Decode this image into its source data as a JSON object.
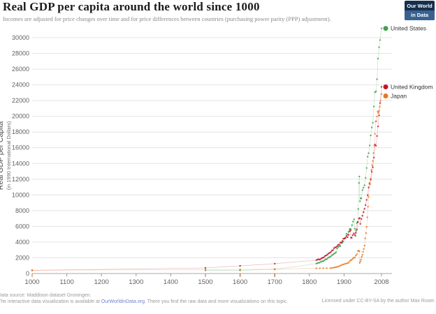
{
  "header": {
    "title": "Real GDP per capita around the world since 1000",
    "subtitle": "Incomes are adjusted for price changes over time and for price differences between countries (purchasing power parity (PPP) adjustment).",
    "logo": {
      "line1": "Our World",
      "line2": "in Data"
    }
  },
  "footer": {
    "line1": "Data source: Maddison dataset Groningen.",
    "line2_pre": "The interactive data visualization is available at ",
    "line2_link": "OurWorldinData.org",
    "line2_post": ". There you find the raw data and more visualizations on this topic.",
    "license": "Licensed under CC-BY-SA by the author Max Roser."
  },
  "colors": {
    "united_states": "#3ea34b",
    "united_kingdom": "#c2152c",
    "japan": "#e8771e",
    "gridline": "#e4e4e4",
    "axis": "#aaaaaa",
    "tick_text": "#616161"
  },
  "chart_data": {
    "type": "scatter",
    "title": "Real GDP per capita around the world since 1000",
    "xlabel": "",
    "ylabel": "Real GDP per Capita",
    "ylabel_sub": "(in 1990 International Dollars)",
    "xlim": [
      1000,
      2008
    ],
    "ylim": [
      0,
      31200
    ],
    "xticks": [
      1000,
      1100,
      1200,
      1300,
      1400,
      1500,
      1600,
      1700,
      1800,
      1900,
      2008
    ],
    "yticks": [
      0,
      2000,
      4000,
      6000,
      8000,
      10000,
      12000,
      14000,
      16000,
      18000,
      20000,
      22000,
      24000,
      26000,
      28000,
      30000
    ],
    "grid": true,
    "legend_position": "line-end-right",
    "series": [
      {
        "name": "United States",
        "color": "#3ea34b",
        "points": [
          [
            1500,
            400
          ],
          [
            1600,
            400
          ],
          [
            1700,
            527
          ],
          [
            1820,
            1257
          ],
          [
            1823,
            1307
          ],
          [
            1826,
            1354
          ],
          [
            1829,
            1386
          ],
          [
            1832,
            1475
          ],
          [
            1835,
            1548
          ],
          [
            1838,
            1563
          ],
          [
            1841,
            1594
          ],
          [
            1844,
            1703
          ],
          [
            1847,
            1820
          ],
          [
            1850,
            1806
          ],
          [
            1853,
            1966
          ],
          [
            1856,
            2060
          ],
          [
            1859,
            2106
          ],
          [
            1862,
            2196
          ],
          [
            1865,
            2332
          ],
          [
            1868,
            2408
          ],
          [
            1871,
            2523
          ],
          [
            1874,
            2593
          ],
          [
            1877,
            2715
          ],
          [
            1880,
            3184
          ],
          [
            1883,
            3373
          ],
          [
            1886,
            3472
          ],
          [
            1889,
            3497
          ],
          [
            1892,
            3902
          ],
          [
            1895,
            3902
          ],
          [
            1898,
            4091
          ],
          [
            1901,
            4464
          ],
          [
            1904,
            4559
          ],
          [
            1907,
            5065
          ],
          [
            1910,
            4964
          ],
          [
            1913,
            5301
          ],
          [
            1916,
            5659
          ],
          [
            1918,
            5659
          ],
          [
            1920,
            5552
          ],
          [
            1923,
            6164
          ],
          [
            1926,
            6602
          ],
          [
            1929,
            6899
          ],
          [
            1931,
            5691
          ],
          [
            1933,
            4777
          ],
          [
            1935,
            5467
          ],
          [
            1937,
            6430
          ],
          [
            1939,
            6561
          ],
          [
            1941,
            8206
          ],
          [
            1943,
            11518
          ],
          [
            1944,
            12333
          ],
          [
            1946,
            9197
          ],
          [
            1948,
            9573
          ],
          [
            1950,
            9561
          ],
          [
            1953,
            10613
          ],
          [
            1956,
            10914
          ],
          [
            1959,
            11230
          ],
          [
            1962,
            12175
          ],
          [
            1965,
            13419
          ],
          [
            1968,
            14863
          ],
          [
            1971,
            15304
          ],
          [
            1974,
            16284
          ],
          [
            1977,
            17567
          ],
          [
            1980,
            18577
          ],
          [
            1983,
            19183
          ],
          [
            1986,
            21236
          ],
          [
            1989,
            23059
          ],
          [
            1992,
            23169
          ],
          [
            1995,
            24712
          ],
          [
            1998,
            27331
          ],
          [
            2001,
            28782
          ],
          [
            2004,
            29694
          ],
          [
            2008,
            31178
          ]
        ]
      },
      {
        "name": "United Kingdom",
        "color": "#c2152c",
        "points": [
          [
            1000,
            400
          ],
          [
            1500,
            714
          ],
          [
            1600,
            974
          ],
          [
            1700,
            1250
          ],
          [
            1820,
            1706
          ],
          [
            1823,
            1757
          ],
          [
            1826,
            1816
          ],
          [
            1829,
            1778
          ],
          [
            1832,
            1828
          ],
          [
            1835,
            1951
          ],
          [
            1838,
            2001
          ],
          [
            1841,
            2045
          ],
          [
            1844,
            2189
          ],
          [
            1847,
            2280
          ],
          [
            1850,
            2330
          ],
          [
            1853,
            2452
          ],
          [
            1856,
            2581
          ],
          [
            1859,
            2634
          ],
          [
            1862,
            2741
          ],
          [
            1865,
            2924
          ],
          [
            1868,
            2972
          ],
          [
            1871,
            3222
          ],
          [
            1874,
            3323
          ],
          [
            1877,
            3343
          ],
          [
            1880,
            3477
          ],
          [
            1883,
            3657
          ],
          [
            1886,
            3668
          ],
          [
            1889,
            3935
          ],
          [
            1892,
            3942
          ],
          [
            1895,
            4139
          ],
          [
            1898,
            4428
          ],
          [
            1901,
            4450
          ],
          [
            1904,
            4497
          ],
          [
            1907,
            4778
          ],
          [
            1910,
            4611
          ],
          [
            1913,
            4921
          ],
          [
            1916,
            5384
          ],
          [
            1918,
            5459
          ],
          [
            1920,
            4548
          ],
          [
            1922,
            4556
          ],
          [
            1925,
            4881
          ],
          [
            1928,
            5115
          ],
          [
            1931,
            4921
          ],
          [
            1934,
            5186
          ],
          [
            1937,
            5621
          ],
          [
            1940,
            6546
          ],
          [
            1943,
            6997
          ],
          [
            1945,
            7056
          ],
          [
            1947,
            6308
          ],
          [
            1950,
            6939
          ],
          [
            1953,
            7346
          ],
          [
            1956,
            7812
          ],
          [
            1959,
            8240
          ],
          [
            1962,
            8709
          ],
          [
            1965,
            9368
          ],
          [
            1968,
            9965
          ],
          [
            1971,
            10941
          ],
          [
            1974,
            11507
          ],
          [
            1977,
            11929
          ],
          [
            1980,
            12931
          ],
          [
            1983,
            13521
          ],
          [
            1986,
            14742
          ],
          [
            1989,
            16414
          ],
          [
            1992,
            16252
          ],
          [
            1995,
            17495
          ],
          [
            1998,
            18714
          ],
          [
            2001,
            20127
          ],
          [
            2004,
            21684
          ],
          [
            2008,
            23742
          ]
        ]
      },
      {
        "name": "Japan",
        "color": "#e8771e",
        "points": [
          [
            1000,
            425
          ],
          [
            1500,
            500
          ],
          [
            1600,
            520
          ],
          [
            1700,
            570
          ],
          [
            1820,
            669
          ],
          [
            1830,
            672
          ],
          [
            1840,
            675
          ],
          [
            1850,
            679
          ],
          [
            1860,
            685
          ],
          [
            1865,
            700
          ],
          [
            1870,
            737
          ],
          [
            1874,
            786
          ],
          [
            1878,
            819
          ],
          [
            1882,
            866
          ],
          [
            1886,
            940
          ],
          [
            1890,
            1012
          ],
          [
            1894,
            1097
          ],
          [
            1898,
            1167
          ],
          [
            1902,
            1217
          ],
          [
            1906,
            1281
          ],
          [
            1910,
            1304
          ],
          [
            1913,
            1387
          ],
          [
            1916,
            1560
          ],
          [
            1919,
            1696
          ],
          [
            1922,
            1720
          ],
          [
            1925,
            1885
          ],
          [
            1928,
            2025
          ],
          [
            1931,
            2017
          ],
          [
            1934,
            2282
          ],
          [
            1937,
            2449
          ],
          [
            1940,
            2874
          ],
          [
            1942,
            2904
          ],
          [
            1944,
            2819
          ],
          [
            1945,
            1346
          ],
          [
            1947,
            1541
          ],
          [
            1949,
            1778
          ],
          [
            1951,
            2126
          ],
          [
            1953,
            2373
          ],
          [
            1955,
            2771
          ],
          [
            1957,
            3120
          ],
          [
            1959,
            3554
          ],
          [
            1961,
            4483
          ],
          [
            1963,
            5150
          ],
          [
            1965,
            5934
          ],
          [
            1967,
            7152
          ],
          [
            1969,
            8500
          ],
          [
            1971,
            9726
          ],
          [
            1973,
            11434
          ],
          [
            1975,
            11344
          ],
          [
            1977,
            12092
          ],
          [
            1979,
            13163
          ],
          [
            1981,
            13754
          ],
          [
            1983,
            14308
          ],
          [
            1985,
            15331
          ],
          [
            1987,
            16250
          ],
          [
            1989,
            17757
          ],
          [
            1991,
            19355
          ],
          [
            1993,
            19365
          ],
          [
            1995,
            19979
          ],
          [
            1997,
            20616
          ],
          [
            1999,
            20431
          ],
          [
            2001,
            20683
          ],
          [
            2003,
            21218
          ],
          [
            2005,
            21976
          ],
          [
            2008,
            22816
          ]
        ]
      }
    ]
  }
}
